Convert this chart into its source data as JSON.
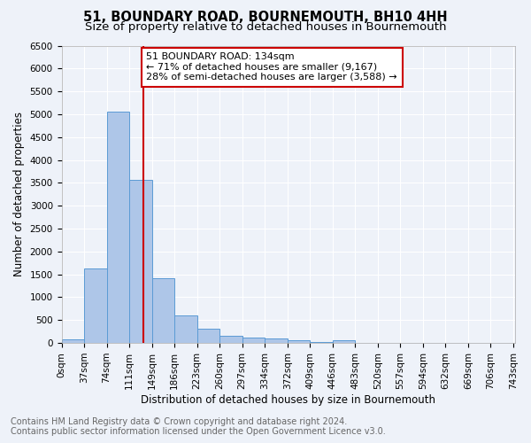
{
  "title": "51, BOUNDARY ROAD, BOURNEMOUTH, BH10 4HH",
  "subtitle": "Size of property relative to detached houses in Bournemouth",
  "xlabel": "Distribution of detached houses by size in Bournemouth",
  "ylabel": "Number of detached properties",
  "bin_labels": [
    "0sqm",
    "37sqm",
    "74sqm",
    "111sqm",
    "149sqm",
    "186sqm",
    "223sqm",
    "260sqm",
    "297sqm",
    "334sqm",
    "372sqm",
    "409sqm",
    "446sqm",
    "483sqm",
    "520sqm",
    "557sqm",
    "594sqm",
    "632sqm",
    "669sqm",
    "706sqm",
    "743sqm"
  ],
  "bar_heights": [
    75,
    1625,
    5060,
    3570,
    1420,
    610,
    310,
    165,
    120,
    90,
    55,
    30,
    55,
    0,
    0,
    0,
    0,
    0,
    0,
    0
  ],
  "bar_color": "#aec6e8",
  "bar_edge_color": "#5b9bd5",
  "property_line_x": 134,
  "x_min": 0,
  "x_max": 743,
  "bin_width": 37,
  "ylim": [
    0,
    6500
  ],
  "annotation_text": "51 BOUNDARY ROAD: 134sqm\n← 71% of detached houses are smaller (9,167)\n28% of semi-detached houses are larger (3,588) →",
  "annotation_box_color": "#ffffff",
  "annotation_box_edge": "#cc0000",
  "red_line_color": "#cc0000",
  "footer1": "Contains HM Land Registry data © Crown copyright and database right 2024.",
  "footer2": "Contains public sector information licensed under the Open Government Licence v3.0.",
  "background_color": "#eef2f9",
  "grid_color": "#ffffff",
  "title_fontsize": 10.5,
  "subtitle_fontsize": 9.5,
  "label_fontsize": 8.5,
  "tick_fontsize": 7.5,
  "footer_fontsize": 7.0,
  "annotation_fontsize": 8.0
}
